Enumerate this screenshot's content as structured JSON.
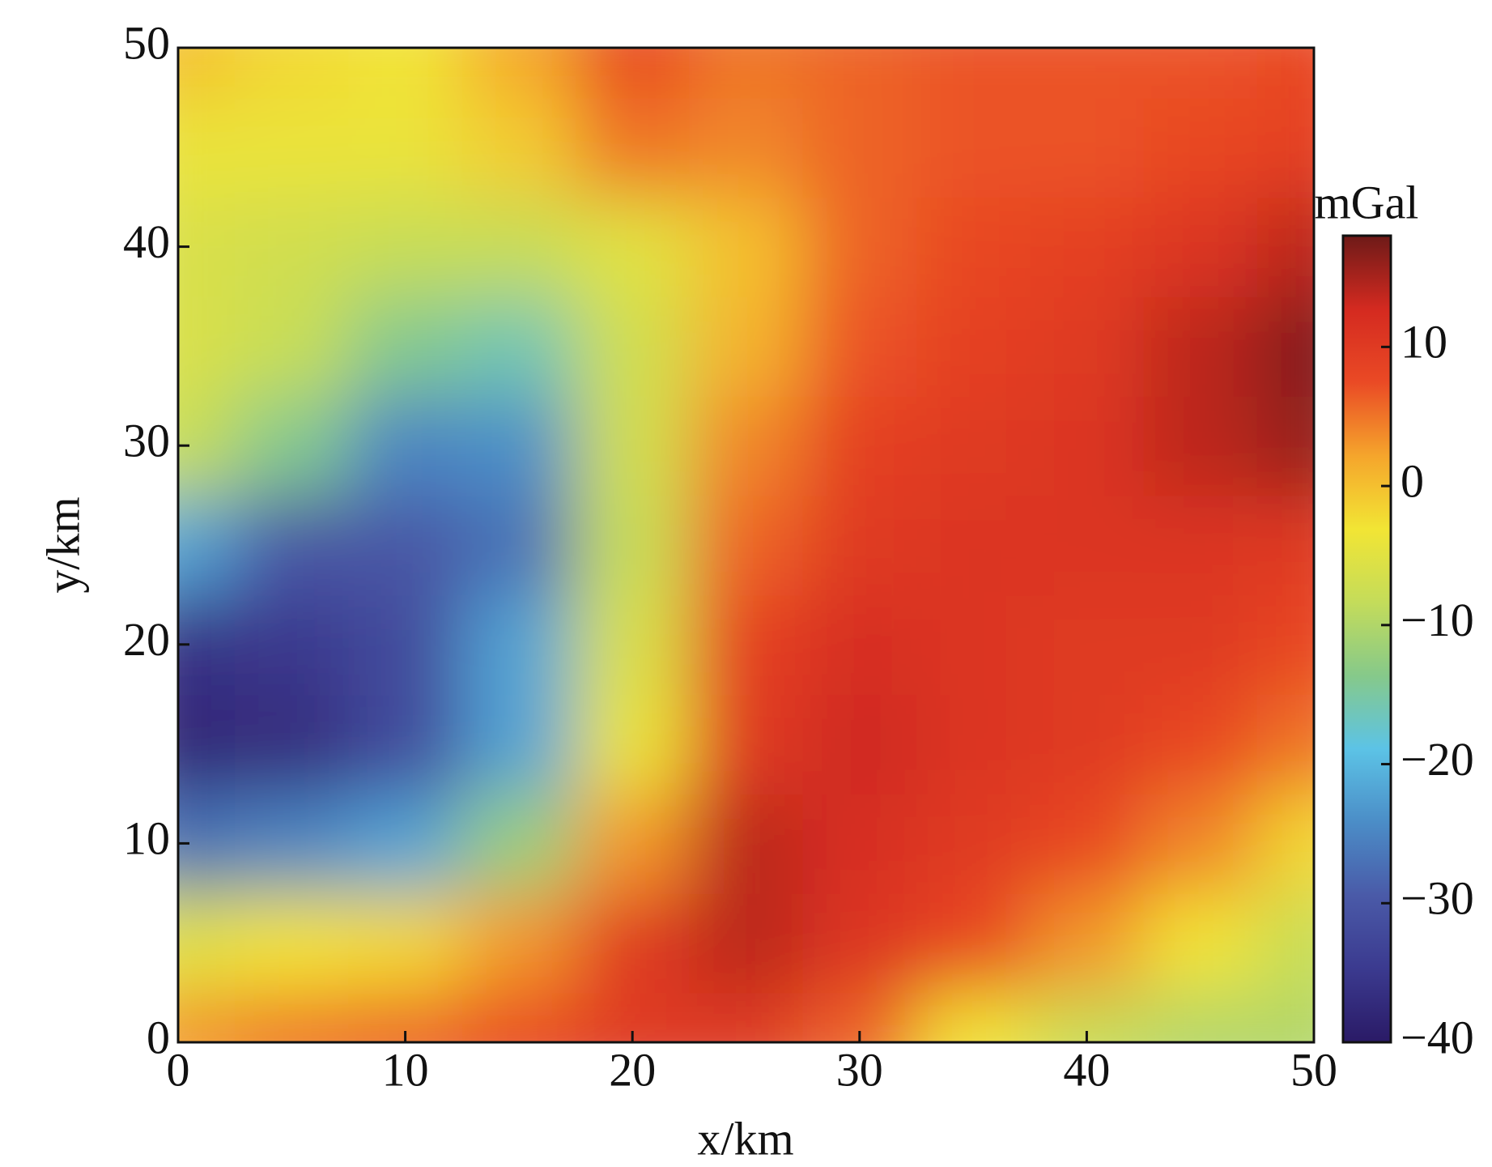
{
  "chart_data": {
    "type": "heatmap",
    "x_label": "x/km",
    "y_label": "y/km",
    "colorbar_label": "mGal",
    "x": [
      0,
      5,
      10,
      15,
      20,
      25,
      30,
      35,
      40,
      45,
      50
    ],
    "y": [
      0,
      5,
      10,
      15,
      20,
      25,
      30,
      35,
      40,
      45,
      50
    ],
    "z": [
      [
        3,
        5,
        6,
        8,
        10,
        10,
        6,
        -3,
        -8,
        -10,
        -10
      ],
      [
        -5,
        -3,
        -2,
        3,
        10,
        14,
        11,
        8,
        3,
        -3,
        -8
      ],
      [
        -27,
        -25,
        -22,
        -12,
        3,
        14,
        12,
        10,
        8,
        4,
        -2
      ],
      [
        -38,
        -37,
        -32,
        -22,
        -4,
        10,
        13,
        11,
        10,
        8,
        5
      ],
      [
        -36,
        -35,
        -32,
        -22,
        -6,
        9,
        12,
        11,
        10,
        10,
        8
      ],
      [
        -22,
        -30,
        -30,
        -27,
        -8,
        6,
        10,
        11,
        11,
        11,
        10
      ],
      [
        -8,
        -14,
        -25,
        -24,
        -7,
        4,
        9,
        10,
        11,
        14,
        16
      ],
      [
        -6,
        -8,
        -14,
        -16,
        -7,
        1,
        7,
        9,
        10,
        14,
        17
      ],
      [
        -6,
        -7,
        -8,
        -8,
        -5,
        0,
        6,
        8,
        9,
        11,
        14
      ],
      [
        -4,
        -4,
        -4,
        -1,
        5,
        4,
        6,
        7,
        7,
        8,
        9
      ],
      [
        0,
        -2,
        -3,
        2,
        8,
        5,
        6,
        7,
        7,
        7,
        8
      ]
    ],
    "xlim": [
      0,
      50
    ],
    "ylim": [
      0,
      50
    ],
    "xticks": [
      0,
      10,
      20,
      30,
      40,
      50
    ],
    "yticks": [
      0,
      10,
      20,
      30,
      40,
      50
    ],
    "zlim": [
      -40,
      18
    ],
    "zticks": [
      {
        "value": -40,
        "label": "−40"
      },
      {
        "value": -30,
        "label": "−30"
      },
      {
        "value": -20,
        "label": "−20"
      },
      {
        "value": -10,
        "label": "−10"
      },
      0,
      10
    ],
    "colorscale": [
      "#2a1a66",
      "#3b3a8f",
      "#4a5aa8",
      "#4b8dc7",
      "#5cc3e6",
      "#86c98a",
      "#c4dc5a",
      "#f2e534",
      "#f5a52c",
      "#ea4a25",
      "#d42a20",
      "#6e1a18"
    ]
  }
}
